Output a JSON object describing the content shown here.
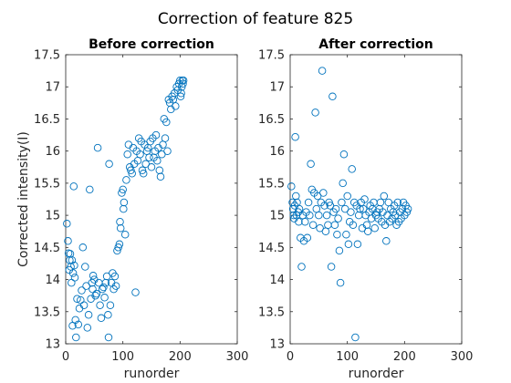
{
  "figure_title": "Correction of feature 825",
  "marker_color": "#0072BD",
  "chart_data": [
    {
      "type": "scatter",
      "title": "Before correction",
      "xlabel": "runorder",
      "ylabel": "Corrected intensity(I)",
      "xlim": [
        0,
        300
      ],
      "ylim": [
        13,
        17.5
      ],
      "xticks": [
        0,
        100,
        200,
        300
      ],
      "yticks": [
        13,
        13.5,
        14,
        14.5,
        15,
        15.5,
        16,
        16.5,
        17,
        17.5
      ],
      "marker": "open-circle",
      "grid": false,
      "x": [
        2,
        4,
        5,
        6,
        7,
        8,
        9,
        10,
        11,
        12,
        13,
        14,
        15,
        16,
        17,
        18,
        20,
        22,
        24,
        26,
        28,
        30,
        32,
        34,
        36,
        38,
        40,
        42,
        44,
        46,
        47,
        48,
        50,
        52,
        54,
        56,
        58,
        60,
        62,
        64,
        66,
        68,
        70,
        72,
        74,
        75,
        76,
        78,
        80,
        82,
        84,
        86,
        88,
        90,
        92,
        94,
        95,
        96,
        98,
        100,
        101,
        102,
        104,
        106,
        108,
        110,
        112,
        114,
        116,
        118,
        120,
        122,
        124,
        126,
        128,
        130,
        132,
        134,
        136,
        138,
        140,
        142,
        144,
        146,
        148,
        150,
        152,
        154,
        156,
        158,
        160,
        162,
        164,
        166,
        168,
        170,
        172,
        174,
        176,
        178,
        180,
        182,
        184,
        186,
        188,
        190,
        192,
        194,
        196,
        198,
        200,
        201,
        202,
        203,
        204,
        205,
        206
      ],
      "y": [
        14.87,
        14.6,
        14.41,
        14.15,
        14.3,
        14.4,
        14.2,
        13.95,
        14.3,
        13.28,
        14.1,
        15.45,
        14.22,
        14.03,
        13.37,
        13.1,
        13.7,
        13.3,
        13.55,
        13.68,
        13.83,
        14.5,
        13.6,
        14.2,
        13.9,
        13.25,
        13.45,
        15.4,
        13.7,
        13.95,
        13.85,
        14.06,
        14.0,
        13.75,
        13.78,
        16.05,
        13.95,
        13.6,
        13.4,
        13.85,
        13.88,
        13.72,
        13.95,
        14.05,
        13.45,
        13.1,
        15.8,
        13.6,
        13.95,
        14.1,
        13.85,
        14.05,
        13.9,
        14.45,
        14.5,
        14.55,
        14.9,
        14.8,
        15.35,
        15.4,
        15.1,
        15.2,
        14.7,
        15.55,
        15.95,
        16.1,
        15.75,
        15.7,
        15.65,
        16.05,
        15.8,
        13.8,
        16.0,
        15.85,
        16.2,
        15.95,
        16.15,
        15.7,
        15.65,
        16.1,
        15.8,
        16.0,
        16.05,
        15.9,
        16.15,
        15.75,
        16.2,
        15.9,
        16.0,
        16.25,
        15.85,
        16.05,
        15.7,
        15.6,
        15.95,
        16.1,
        16.5,
        16.2,
        16.45,
        16.0,
        16.8,
        16.75,
        16.65,
        16.85,
        16.8,
        16.9,
        16.7,
        17.0,
        16.95,
        17.05,
        17.1,
        16.85,
        16.9,
        17.0,
        17.1,
        17.05,
        17.1
      ]
    },
    {
      "type": "scatter",
      "title": "After correction",
      "xlabel": "runorder",
      "ylabel": "",
      "xlim": [
        0,
        300
      ],
      "ylim": [
        13,
        17.5
      ],
      "xticks": [
        0,
        100,
        200,
        300
      ],
      "yticks": [
        13,
        13.5,
        14,
        14.5,
        15,
        15.5,
        16,
        16.5,
        17,
        17.5
      ],
      "marker": "open-circle",
      "grid": false,
      "x": [
        2,
        4,
        5,
        6,
        7,
        8,
        9,
        10,
        11,
        12,
        14,
        15,
        16,
        18,
        20,
        22,
        24,
        26,
        28,
        30,
        32,
        34,
        36,
        38,
        40,
        42,
        44,
        46,
        48,
        50,
        52,
        54,
        56,
        58,
        60,
        62,
        64,
        66,
        68,
        70,
        72,
        74,
        76,
        78,
        80,
        82,
        84,
        86,
        88,
        90,
        92,
        94,
        96,
        98,
        100,
        102,
        104,
        106,
        108,
        110,
        112,
        114,
        116,
        118,
        120,
        122,
        124,
        126,
        128,
        130,
        132,
        134,
        136,
        138,
        140,
        142,
        144,
        146,
        148,
        150,
        152,
        154,
        156,
        158,
        160,
        162,
        164,
        166,
        168,
        170,
        172,
        174,
        176,
        178,
        180,
        182,
        184,
        186,
        188,
        190,
        192,
        194,
        196,
        198,
        200,
        202,
        204,
        206
      ],
      "y": [
        15.45,
        15.2,
        15.1,
        15.0,
        14.95,
        15.15,
        16.22,
        15.3,
        15.0,
        15.2,
        15.05,
        14.9,
        15.1,
        14.65,
        14.2,
        15.0,
        14.6,
        14.9,
        15.05,
        14.65,
        15.2,
        15.0,
        15.8,
        15.4,
        14.85,
        15.35,
        16.6,
        15.1,
        15.3,
        15.0,
        14.8,
        15.2,
        17.25,
        15.35,
        15.15,
        14.75,
        15.0,
        14.85,
        15.2,
        15.15,
        14.2,
        16.85,
        15.05,
        14.85,
        15.1,
        14.7,
        14.95,
        14.45,
        13.95,
        15.2,
        15.5,
        15.95,
        15.1,
        14.7,
        15.3,
        14.55,
        14.9,
        15.05,
        15.72,
        14.85,
        15.2,
        13.1,
        15.15,
        14.55,
        15.0,
        15.1,
        15.2,
        14.8,
        15.1,
        15.25,
        15.0,
        14.85,
        14.75,
        15.05,
        15.15,
        14.95,
        15.1,
        15.2,
        14.8,
        15.0,
        15.05,
        14.95,
        15.1,
        15.2,
        14.9,
        15.05,
        15.3,
        14.85,
        14.6,
        15.0,
        15.2,
        14.9,
        15.1,
        14.95,
        15.05,
        15.15,
        15.0,
        14.85,
        15.2,
        14.9,
        15.05,
        14.95,
        15.1,
        15.2,
        15.0,
        15.15,
        15.05,
        15.1
      ]
    }
  ]
}
